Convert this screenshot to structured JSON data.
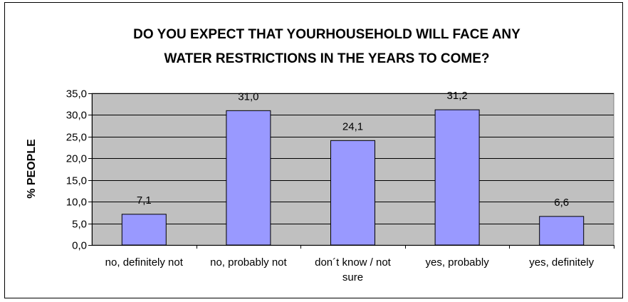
{
  "chart_data": {
    "type": "bar",
    "title_lines": [
      "DO YOU EXPECT THAT YOURHOUSEHOLD WILL FACE ANY",
      "WATER RESTRICTIONS IN THE YEARS TO COME?"
    ],
    "ylabel": "% PEOPLE",
    "xlabel": "",
    "categories": [
      [
        "no, definitely not"
      ],
      [
        "no, probably not"
      ],
      [
        "don´t know / not",
        "sure"
      ],
      [
        "yes, probably"
      ],
      [
        "yes, definitely"
      ]
    ],
    "values": [
      7.1,
      31.0,
      24.1,
      31.2,
      6.6
    ],
    "value_labels": [
      "7,1",
      "31,0",
      "24,1",
      "31,2",
      "6,6"
    ],
    "ylim": [
      0,
      35
    ],
    "ytick_values": [
      0,
      5,
      10,
      15,
      20,
      25,
      30,
      35
    ],
    "ytick_labels": [
      "0,0",
      "5,0",
      "10,0",
      "15,0",
      "20,0",
      "25,0",
      "30,0",
      "35,0"
    ],
    "grid": true,
    "legend": "none",
    "colors": {
      "bar_fill": "#9999ff",
      "bar_stroke": "#000000",
      "plot_background": "#c0c0c0",
      "gridline": "#000000"
    }
  }
}
